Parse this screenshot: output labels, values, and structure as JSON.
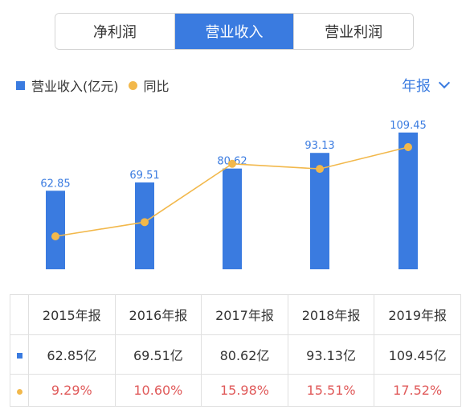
{
  "tabs": [
    {
      "label": "净利润",
      "active": false
    },
    {
      "label": "营业收入",
      "active": true
    },
    {
      "label": "营业利润",
      "active": false
    }
  ],
  "legend": {
    "bar_label": "营业收入(亿元)",
    "line_label": "同比"
  },
  "period_selector": {
    "label": "年报"
  },
  "colors": {
    "bar": "#3a7be0",
    "line": "#f2b84b",
    "growth_text": "#e05a5a",
    "active_tab": "#3a7be0"
  },
  "chart_data": {
    "type": "bar",
    "categories": [
      "2015年报",
      "2016年报",
      "2017年报",
      "2018年报",
      "2019年报"
    ],
    "series": [
      {
        "name": "营业收入(亿元)",
        "type": "bar",
        "values": [
          62.85,
          69.51,
          80.62,
          93.13,
          109.45
        ]
      },
      {
        "name": "同比",
        "type": "line",
        "values": [
          9.29,
          10.6,
          15.98,
          15.51,
          17.52
        ]
      }
    ],
    "data_labels": [
      "62.85",
      "69.51",
      "80.62",
      "93.13",
      "109.45"
    ]
  },
  "table": {
    "headers": [
      "2015年报",
      "2016年报",
      "2017年报",
      "2018年报",
      "2019年报"
    ],
    "revenue_row": [
      "62.85亿",
      "69.51亿",
      "80.62亿",
      "93.13亿",
      "109.45亿"
    ],
    "growth_row": [
      "9.29%",
      "10.60%",
      "15.98%",
      "15.51%",
      "17.52%"
    ]
  }
}
